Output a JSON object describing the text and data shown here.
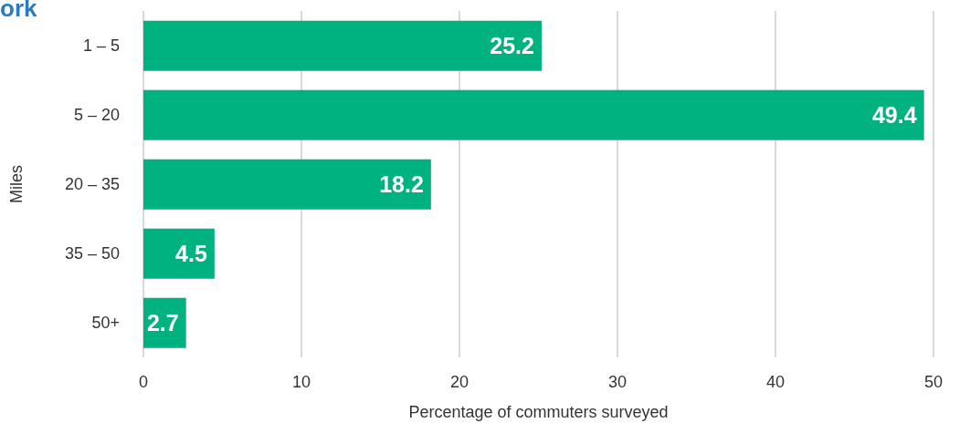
{
  "chart_data": {
    "type": "bar",
    "orientation": "horizontal",
    "title": "ork",
    "categories": [
      "1 – 5",
      "5 – 20",
      "20 – 35",
      "35 – 50",
      "50+"
    ],
    "values": [
      25.2,
      49.4,
      18.2,
      4.5,
      2.7
    ],
    "color": "#00b27f",
    "xlim": [
      0,
      50
    ],
    "xticks": [
      0,
      10,
      20,
      30,
      40,
      50
    ],
    "xlabel": "Percentage of commuters surveyed",
    "ylabel": "Miles",
    "grid": "x",
    "data_labels": true,
    "legend": false
  }
}
